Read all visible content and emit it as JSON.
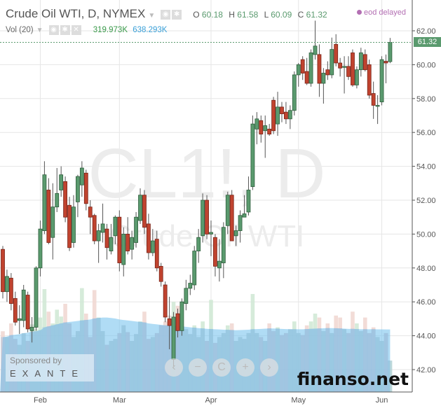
{
  "header": {
    "title": "Crude Oil WTI, D, NYMEX",
    "ohlc": {
      "o_label": "O",
      "o": "60.18",
      "h_label": "H",
      "h": "61.58",
      "l_label": "L",
      "l": "60.09",
      "c_label": "C",
      "c": "61.32"
    },
    "status": "eod delayed"
  },
  "volume_header": {
    "label": "Vol (20)",
    "vol": "319.973K",
    "vol_ma": "638.293K"
  },
  "watermark": {
    "symbol": "CL1!, D",
    "name": "Crude Oil WTI"
  },
  "sponsor": {
    "line1": "Sponsored by",
    "line2": "EXANTE"
  },
  "nav": {
    "left": "‹",
    "minus": "−",
    "reset": "C",
    "plus": "+",
    "right": "›"
  },
  "site": "finanso.net",
  "colors": {
    "up": "#5a9a6e",
    "down": "#c0432f",
    "volume_ma": "#7cc4ef",
    "status": "#b36fb3"
  },
  "chart_data": {
    "type": "candlestick",
    "price_axis": {
      "ylim": [
        41.5,
        63.2
      ],
      "ticks": [
        "42.00",
        "44.00",
        "46.00",
        "48.00",
        "50.00",
        "52.00",
        "54.00",
        "56.00",
        "58.00",
        "60.00",
        "62.00"
      ],
      "last_price": "61.32"
    },
    "x_ticks": [
      {
        "label": "Feb",
        "index": 9
      },
      {
        "label": "Mar",
        "index": 28
      },
      {
        "label": "Apr",
        "index": 50
      },
      {
        "label": "May",
        "index": 71
      },
      {
        "label": "Jun",
        "index": 91
      }
    ],
    "grid": true,
    "candles": [
      [
        49.1,
        49.3,
        46.2,
        46.6
      ],
      [
        46.6,
        47.9,
        46.0,
        47.5
      ],
      [
        47.4,
        47.7,
        45.5,
        45.9
      ],
      [
        46.2,
        46.6,
        44.6,
        44.8
      ],
      [
        44.9,
        45.8,
        44.1,
        45.0
      ],
      [
        44.9,
        47.0,
        44.5,
        46.7
      ],
      [
        46.4,
        46.6,
        44.2,
        44.4
      ],
      [
        44.3,
        45.1,
        43.6,
        44.5
      ],
      [
        44.5,
        48.1,
        44.3,
        48.0
      ],
      [
        48.0,
        50.8,
        47.5,
        50.3
      ],
      [
        50.2,
        54.3,
        50.0,
        53.5
      ],
      [
        52.6,
        53.3,
        49.4,
        49.5
      ],
      [
        49.8,
        53.0,
        48.5,
        51.6
      ],
      [
        51.6,
        53.9,
        51.3,
        52.4
      ],
      [
        52.6,
        54.0,
        52.2,
        53.5
      ],
      [
        53.1,
        53.4,
        50.7,
        51.0
      ],
      [
        51.7,
        52.2,
        49.0,
        49.2
      ],
      [
        49.5,
        52.3,
        49.2,
        51.6
      ],
      [
        51.9,
        53.5,
        51.0,
        53.4
      ],
      [
        52.9,
        54.3,
        52.2,
        53.9
      ],
      [
        53.6,
        53.8,
        51.4,
        51.8
      ],
      [
        51.6,
        52.0,
        50.0,
        51.0
      ],
      [
        51.1,
        51.2,
        49.4,
        49.6
      ],
      [
        49.6,
        50.6,
        48.3,
        50.2
      ],
      [
        50.1,
        51.8,
        49.5,
        50.6
      ],
      [
        50.3,
        50.6,
        48.5,
        49.2
      ],
      [
        49.0,
        50.6,
        48.8,
        49.8
      ],
      [
        49.9,
        51.1,
        49.4,
        51.0
      ],
      [
        51.0,
        51.4,
        47.8,
        48.3
      ],
      [
        48.2,
        50.4,
        47.5,
        50.0
      ],
      [
        50.0,
        51.0,
        48.8,
        49.0
      ],
      [
        49.1,
        50.2,
        48.5,
        49.8
      ],
      [
        49.5,
        51.3,
        49.2,
        51.0
      ],
      [
        50.8,
        52.7,
        50.6,
        52.3
      ],
      [
        52.3,
        52.6,
        50.0,
        50.4
      ],
      [
        50.6,
        51.2,
        48.5,
        48.9
      ],
      [
        48.9,
        50.3,
        48.7,
        49.6
      ],
      [
        49.7,
        50.2,
        47.8,
        48.0
      ],
      [
        48.1,
        48.3,
        46.9,
        47.2
      ],
      [
        47.0,
        47.2,
        44.8,
        45.1
      ],
      [
        45.0,
        46.3,
        43.2,
        44.6
      ],
      [
        42.6,
        45.4,
        42.2,
        45.1
      ],
      [
        45.3,
        45.6,
        43.9,
        44.3
      ],
      [
        44.3,
        46.2,
        44.0,
        46.0
      ],
      [
        45.9,
        47.3,
        45.5,
        46.8
      ],
      [
        46.8,
        47.6,
        46.4,
        47.1
      ],
      [
        47.0,
        49.3,
        46.7,
        49.0
      ],
      [
        49.0,
        50.3,
        48.3,
        49.8
      ],
      [
        49.9,
        52.4,
        49.5,
        52.0
      ],
      [
        52.0,
        52.3,
        49.7,
        50.0
      ],
      [
        50.0,
        50.8,
        48.7,
        50.1
      ],
      [
        49.8,
        50.0,
        47.5,
        48.1
      ],
      [
        48.0,
        49.7,
        47.2,
        48.4
      ],
      [
        48.3,
        50.7,
        47.4,
        50.4
      ],
      [
        50.5,
        52.5,
        50.0,
        52.3
      ],
      [
        52.3,
        52.6,
        49.6,
        49.6
      ],
      [
        49.9,
        50.5,
        49.3,
        50.2
      ],
      [
        50.2,
        51.4,
        49.5,
        51.1
      ],
      [
        51.0,
        52.3,
        51.0,
        51.2
      ],
      [
        51.3,
        53.4,
        51.1,
        52.6
      ],
      [
        52.8,
        57.0,
        52.6,
        56.5
      ],
      [
        56.2,
        57.2,
        55.3,
        56.8
      ],
      [
        56.7,
        57.0,
        55.4,
        55.9
      ],
      [
        56.1,
        57.0,
        54.5,
        56.4
      ],
      [
        56.2,
        56.5,
        55.8,
        55.9
      ],
      [
        57.9,
        58.1,
        55.9,
        56.1
      ],
      [
        56.5,
        58.4,
        55.8,
        57.5
      ],
      [
        57.5,
        57.8,
        56.6,
        57.1
      ],
      [
        57.2,
        57.8,
        56.5,
        56.8
      ],
      [
        56.8,
        57.6,
        56.2,
        57.3
      ],
      [
        57.3,
        59.6,
        57.0,
        59.4
      ],
      [
        59.4,
        60.1,
        58.7,
        60.0
      ],
      [
        60.3,
        60.5,
        59.1,
        59.5
      ],
      [
        59.6,
        60.4,
        58.8,
        58.9
      ],
      [
        58.9,
        60.9,
        58.7,
        60.7
      ],
      [
        60.6,
        62.6,
        60.3,
        61.1
      ],
      [
        60.6,
        61.2,
        58.1,
        58.9
      ],
      [
        58.9,
        59.8,
        57.7,
        59.5
      ],
      [
        59.7,
        60.2,
        59.1,
        59.4
      ],
      [
        59.4,
        61.6,
        59.2,
        60.9
      ],
      [
        61.2,
        61.8,
        59.9,
        60.1
      ],
      [
        60.1,
        60.4,
        59.3,
        59.8
      ],
      [
        59.9,
        60.5,
        58.3,
        59.9
      ],
      [
        59.9,
        60.5,
        59.1,
        59.3
      ],
      [
        60.7,
        60.9,
        58.7,
        58.8
      ],
      [
        58.8,
        59.9,
        58.6,
        59.7
      ],
      [
        59.7,
        61.0,
        59.3,
        60.7
      ],
      [
        60.6,
        60.9,
        59.6,
        59.7
      ],
      [
        60.0,
        60.3,
        58.0,
        58.2
      ],
      [
        58.3,
        59.0,
        56.8,
        57.6
      ],
      [
        57.6,
        58.2,
        56.5,
        57.6
      ],
      [
        57.8,
        60.5,
        57.6,
        60.3
      ],
      [
        60.2,
        60.6,
        58.9,
        60.1
      ],
      [
        60.18,
        61.58,
        60.09,
        61.32
      ]
    ],
    "volume_k": [
      620,
      560,
      700,
      540,
      480,
      600,
      520,
      690,
      640,
      760,
      1050,
      820,
      700,
      840,
      770,
      900,
      700,
      560,
      620,
      1060,
      800,
      560,
      1040,
      760,
      620,
      480,
      520,
      540,
      600,
      680,
      610,
      520,
      590,
      720,
      820,
      540,
      560,
      600,
      680,
      720,
      780,
      920,
      880,
      700,
      640,
      590,
      680,
      560,
      720,
      520,
      940,
      500,
      560,
      600,
      680,
      700,
      520,
      560,
      540,
      600,
      1000,
      600,
      560,
      520,
      700,
      620,
      660,
      580,
      600,
      640,
      720,
      600,
      580,
      680,
      720,
      800,
      760,
      620,
      700,
      600,
      780,
      760,
      640,
      600,
      820,
      700,
      620,
      760,
      600,
      660,
      560,
      520,
      600,
      320
    ],
    "volume_ma_k": [
      560,
      565,
      580,
      585,
      590,
      600,
      605,
      615,
      620,
      630,
      660,
      670,
      680,
      690,
      700,
      710,
      715,
      720,
      725,
      730,
      735,
      740,
      750,
      755,
      760,
      760,
      755,
      750,
      740,
      735,
      730,
      725,
      720,
      715,
      710,
      700,
      695,
      690,
      685,
      680,
      678,
      676,
      674,
      670,
      665,
      660,
      656,
      652,
      648,
      645,
      642,
      640,
      638,
      636,
      634,
      632,
      630,
      632,
      634,
      636,
      640,
      642,
      644,
      646,
      648,
      648,
      646,
      644,
      642,
      640,
      640,
      640,
      640,
      642,
      644,
      646,
      648,
      650,
      652,
      652,
      650,
      648,
      646,
      644,
      644,
      642,
      640,
      640,
      640,
      640,
      639,
      639,
      638,
      638
    ]
  }
}
